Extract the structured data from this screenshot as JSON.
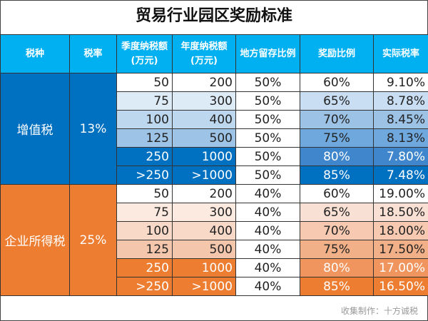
{
  "title": "贸易行业园区奖励标准",
  "headers": [
    "税种",
    "税率",
    "季度纳税额\n(万元)",
    "年度纳税额\n(万元)",
    "地方留存比例",
    "奖励比例",
    "实际税率"
  ],
  "groups": [
    {
      "tax_type": "增值税",
      "rate": "13%",
      "color": "#0070c0",
      "rows": [
        {
          "quarterly": "50",
          "annual": "200",
          "retention": "50%",
          "reward": "60%",
          "actual": "9.10%"
        },
        {
          "quarterly": "75",
          "annual": "300",
          "retention": "50%",
          "reward": "65%",
          "actual": "8.78%"
        },
        {
          "quarterly": "100",
          "annual": "400",
          "retention": "50%",
          "reward": "70%",
          "actual": "8.45%"
        },
        {
          "quarterly": "125",
          "annual": "500",
          "retention": "50%",
          "reward": "75%",
          "actual": "8.13%"
        },
        {
          "quarterly": "250",
          "annual": "1000",
          "retention": "50%",
          "reward": "80%",
          "actual": "7.80%"
        },
        {
          "quarterly": ">250",
          "annual": ">1000",
          "retention": "50%",
          "reward": "85%",
          "actual": "7.48%"
        }
      ]
    },
    {
      "tax_type": "企业所得税",
      "rate": "25%",
      "color": "#ed7d31",
      "rows": [
        {
          "quarterly": "50",
          "annual": "200",
          "retention": "40%",
          "reward": "60%",
          "actual": "19.00%"
        },
        {
          "quarterly": "75",
          "annual": "300",
          "retention": "40%",
          "reward": "65%",
          "actual": "18.50%"
        },
        {
          "quarterly": "100",
          "annual": "400",
          "retention": "40%",
          "reward": "70%",
          "actual": "18.00%"
        },
        {
          "quarterly": "125",
          "annual": "500",
          "retention": "40%",
          "reward": "75%",
          "actual": "17.50%"
        },
        {
          "quarterly": "250",
          "annual": "1000",
          "retention": "40%",
          "reward": "80%",
          "actual": "17.00%"
        },
        {
          "quarterly": ">250",
          "annual": ">1000",
          "retention": "40%",
          "reward": "85%",
          "actual": "16.50%"
        }
      ]
    }
  ],
  "header_color": "#00b0f0",
  "footer": "收集制作：十方诚税"
}
